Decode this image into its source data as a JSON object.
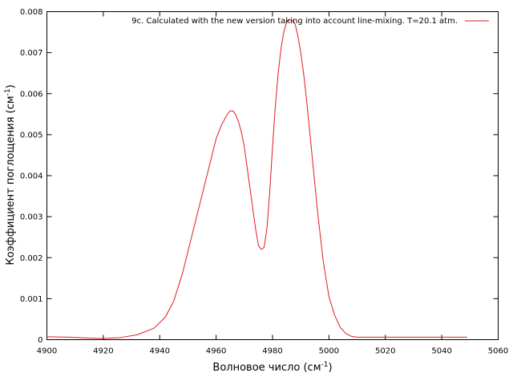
{
  "chart_data": {
    "type": "line",
    "title": "",
    "xlabel": "Волновое число (см",
    "xlabel_sup": "-1",
    "xlabel_tail": ")",
    "ylabel": "Коэффициент поглощения (см",
    "ylabel_sup": "-1",
    "ylabel_tail": ")",
    "xlim": [
      4900,
      5060
    ],
    "ylim": [
      0,
      0.008
    ],
    "xticks": [
      4900,
      4920,
      4940,
      4960,
      4980,
      5000,
      5020,
      5040,
      5060
    ],
    "yticks": [
      0,
      0.001,
      0.002,
      0.003,
      0.004,
      0.005,
      0.006,
      0.007,
      0.008
    ],
    "ytick_labels": [
      "0",
      "0.001",
      "0.002",
      "0.003",
      "0.004",
      "0.005",
      "0.006",
      "0.007",
      "0.008"
    ],
    "grid": false,
    "legend_position": "top-right",
    "series": [
      {
        "name": "9c. Calculated with the new  version taking into account line-mixing. T=20.1 atm.",
        "color": "#e41a1c",
        "x": [
          4900,
          4908,
          4915,
          4920,
          4926,
          4932,
          4938,
          4942,
          4945,
          4948,
          4952,
          4956,
          4960,
          4962,
          4964,
          4965,
          4966,
          4967,
          4968,
          4969,
          4970,
          4971,
          4972,
          4973,
          4974,
          4975,
          4976,
          4977,
          4978,
          4979,
          4980,
          4981,
          4982,
          4983,
          4984,
          4985,
          4986,
          4987,
          4988,
          4989,
          4990,
          4991,
          4992,
          4993,
          4994,
          4995,
          4996,
          4998,
          5000,
          5002,
          5004,
          5006,
          5008,
          5010,
          5015,
          5020,
          5030,
          5040,
          5049
        ],
        "y": [
          7e-05,
          6e-05,
          4e-05,
          3e-05,
          5e-05,
          0.00012,
          0.00028,
          0.00055,
          0.00095,
          0.0016,
          0.0027,
          0.0038,
          0.0049,
          0.00525,
          0.0055,
          0.00558,
          0.00558,
          0.00548,
          0.0053,
          0.00505,
          0.0047,
          0.0042,
          0.0037,
          0.0032,
          0.0027,
          0.0023,
          0.0022,
          0.00225,
          0.0027,
          0.0036,
          0.0047,
          0.0057,
          0.0065,
          0.0071,
          0.0075,
          0.00775,
          0.0078,
          0.00778,
          0.0077,
          0.0074,
          0.007,
          0.0065,
          0.0059,
          0.0052,
          0.0045,
          0.0038,
          0.0031,
          0.0019,
          0.00105,
          0.0006,
          0.0003,
          0.00015,
          8e-05,
          6e-05,
          6e-05,
          6e-05,
          6e-05,
          6e-05,
          6e-05
        ]
      }
    ]
  }
}
